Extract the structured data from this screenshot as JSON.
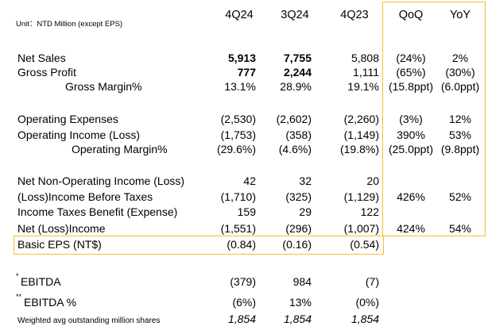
{
  "header": {
    "unit": "Unit：NTD Million (except EPS)",
    "columns": [
      "4Q24",
      "3Q24",
      "4Q23",
      "QoQ",
      "YoY"
    ]
  },
  "table": {
    "rows": [
      {
        "label": "Net Sales",
        "cells": [
          "5,913",
          "7,755",
          "5,808",
          "(24%)",
          "2%"
        ]
      },
      {
        "label": "Gross Profit",
        "cells": [
          "777",
          "2,244",
          "1,111",
          "(65%)",
          "(30%)"
        ]
      },
      {
        "label": "Gross Margin%",
        "cells": [
          "13.1%",
          "28.9%",
          "19.1%",
          "(15.8ppt)",
          "(6.0ppt)"
        ]
      },
      {
        "label": "Operating Expenses",
        "cells": [
          "(2,530)",
          "(2,602)",
          "(2,260)",
          "(3%)",
          "12%"
        ]
      },
      {
        "label": "Operating Income (Loss)",
        "cells": [
          "(1,753)",
          "(358)",
          "(1,149)",
          "390%",
          "53%"
        ]
      },
      {
        "label": "Operating Margin%",
        "cells": [
          "(29.6%)",
          "(4.6%)",
          "(19.8%)",
          "(25.0ppt)",
          "(9.8ppt)"
        ]
      },
      {
        "label": "Net Non-Operating Income (Loss)",
        "cells": [
          "42",
          "32",
          "20",
          null,
          null
        ]
      },
      {
        "label": "(Loss)Income Before Taxes",
        "cells": [
          "(1,710)",
          "(325)",
          "(1,129)",
          "426%",
          "52%"
        ]
      },
      {
        "label": "Income Taxes Benefit (Expense)",
        "cells": [
          "159",
          "29",
          "122",
          null,
          null
        ]
      },
      {
        "label": "Net (Loss)Income",
        "cells": [
          "(1,551)",
          "(296)",
          "(1,007)",
          "424%",
          "54%"
        ]
      },
      {
        "label": "Basic EPS (NT$)",
        "cells": [
          "(0.84)",
          "(0.16)",
          "(0.54)",
          null,
          null
        ]
      },
      {
        "mark": "*",
        "label": "EBITDA",
        "cells": [
          "(379)",
          "984",
          "(7)",
          null,
          null
        ]
      },
      {
        "mark": "**",
        "label": "EBITDA %",
        "cells": [
          "(6%)",
          "13%",
          "(0%)",
          null,
          null
        ]
      },
      {
        "label": "Weighted avg outstanding million shares",
        "cells": [
          "1,854",
          "1,854",
          "1,854",
          null,
          null
        ]
      }
    ]
  }
}
